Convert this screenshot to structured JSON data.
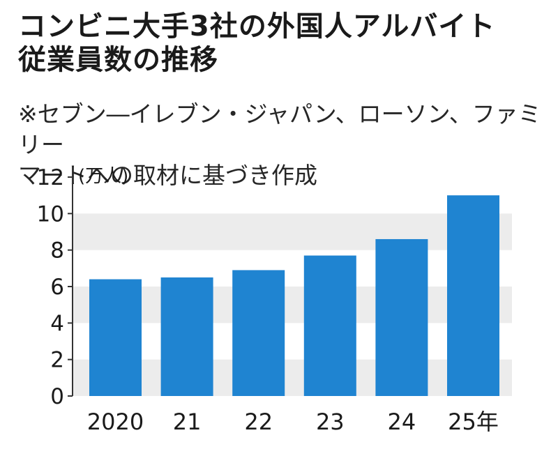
{
  "title": {
    "line1": "コンビニ大手3社の外国人アルバイト",
    "line2": "従業員数の推移"
  },
  "note": {
    "line1": "※セブン―イレブン・ジャパン、ローソン、ファミリー",
    "line2": "マートへの取材に基づき作成"
  },
  "chart_data": {
    "type": "bar",
    "title": "コンビニ大手3社の外国人アルバイト従業員数の推移",
    "ylabel": "(万人)",
    "xlabel": "",
    "categories": [
      "2020",
      "21",
      "22",
      "23",
      "24",
      "25年"
    ],
    "values": [
      6.4,
      6.5,
      6.9,
      7.7,
      8.6,
      11.0
    ],
    "ylim": [
      0,
      12
    ],
    "yticks": [
      0,
      2,
      4,
      6,
      8,
      10,
      12
    ],
    "unit": "(万人)",
    "bar_color": "#1f84d1",
    "band_color": "#ececec",
    "grid": "alternating horizontal bands"
  }
}
